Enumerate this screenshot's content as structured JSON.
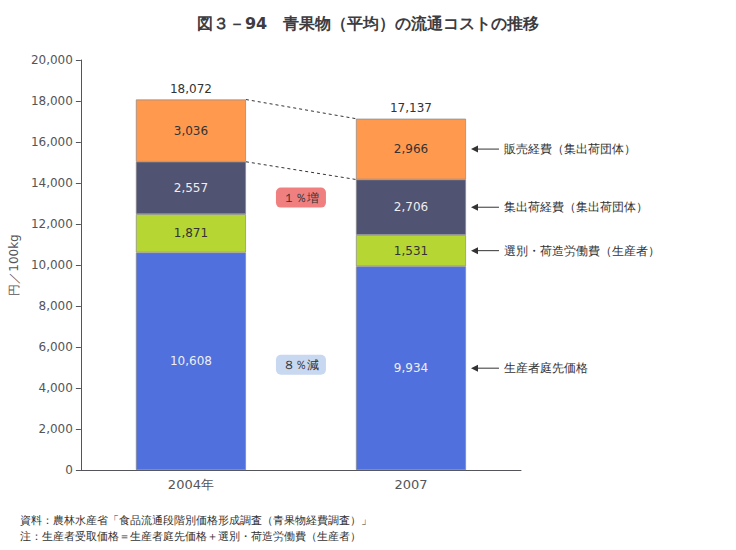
{
  "chart_data": {
    "type": "bar",
    "stacked": true,
    "data_labels": true,
    "grid": false,
    "title": "図３－94　青果物（平均）の流通コストの推移",
    "y_label": "円／100kg",
    "categories": [
      "2004年",
      "2007"
    ],
    "series": [
      {
        "name": "生産者庭先価格",
        "values": [
          10608,
          9934
        ],
        "value_labels": [
          "10,608",
          "9,934"
        ]
      },
      {
        "name": "選別・荷造労働費（生産者）",
        "values": [
          1871,
          1531
        ],
        "value_labels": [
          "1,871",
          "1,531"
        ]
      },
      {
        "name": "集出荷経費（集出荷団体）",
        "values": [
          2557,
          2706
        ],
        "value_labels": [
          "2,557",
          "2,706"
        ]
      },
      {
        "name": "販売経費（集出荷団体）",
        "values": [
          3036,
          2966
        ],
        "value_labels": [
          "3,036",
          "2,966"
        ]
      }
    ],
    "totals": [
      18072,
      17137
    ],
    "total_labels": [
      "18,072",
      "17,137"
    ],
    "annotations": [
      {
        "text": "１％増",
        "color": "#f08080"
      },
      {
        "text": "８％減",
        "color": "#c8d8f0"
      }
    ],
    "source": "資料：農林水産省「食品流通段階別価格形成調査（青果物経費調査）」",
    "note": "注：生産者受取価格＝生産者庭先価格＋選別・荷造労働費（生産者）",
    "ylim": [
      0,
      20000
    ],
    "yticks": [
      0,
      {
        "value": 2000,
        "label": "2,000"
      },
      {
        "value": 4000,
        "label": "4,000"
      },
      {
        "value": 6000,
        "label": "6,000"
      },
      {
        "value": 8000,
        "label": "8,000"
      },
      {
        "value": 10000,
        "label": "10,000"
      },
      {
        "value": 12000,
        "label": "12,000"
      },
      {
        "value": 14000,
        "label": "14,000"
      },
      {
        "value": 16000,
        "label": "16,000"
      },
      {
        "value": 18000,
        "label": "18,000"
      },
      {
        "value": 20000,
        "label": "20,000"
      }
    ]
  }
}
